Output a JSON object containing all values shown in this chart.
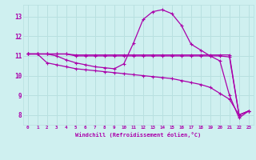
{
  "xlabel": "Windchill (Refroidissement éolien,°C)",
  "ylabel": "",
  "bg_color": "#cff0f0",
  "grid_color": "#b8e0e0",
  "line_color": "#aa00aa",
  "xlim": [
    -0.5,
    23.5
  ],
  "ylim": [
    7.5,
    13.6
  ],
  "xticks": [
    0,
    1,
    2,
    3,
    4,
    5,
    6,
    7,
    8,
    9,
    10,
    11,
    12,
    13,
    14,
    15,
    16,
    17,
    18,
    19,
    20,
    21,
    22,
    23
  ],
  "yticks": [
    8,
    9,
    10,
    11,
    12,
    13
  ],
  "line_flat1_x": [
    0,
    1,
    2,
    3,
    4,
    5,
    6,
    7,
    8,
    9,
    10,
    11,
    12,
    13,
    14,
    15,
    16,
    17,
    18,
    19,
    20,
    21,
    22,
    23
  ],
  "line_flat1_y": [
    11.1,
    11.1,
    11.1,
    11.1,
    11.1,
    11.05,
    11.05,
    11.05,
    11.05,
    11.05,
    11.05,
    11.05,
    11.05,
    11.05,
    11.05,
    11.05,
    11.05,
    11.05,
    11.05,
    11.05,
    11.05,
    11.05,
    8.0,
    8.2
  ],
  "line_flat2_x": [
    0,
    1,
    2,
    3,
    4,
    5,
    6,
    7,
    8,
    9,
    10,
    11,
    12,
    13,
    14,
    15,
    16,
    17,
    18,
    19,
    20,
    21,
    22,
    23
  ],
  "line_flat2_y": [
    11.1,
    11.1,
    11.1,
    11.1,
    11.1,
    11.0,
    11.0,
    11.0,
    11.0,
    11.0,
    11.0,
    11.0,
    11.0,
    11.0,
    11.0,
    11.0,
    11.0,
    11.0,
    11.0,
    11.0,
    11.0,
    10.95,
    8.0,
    8.2
  ],
  "line_diag_x": [
    0,
    1,
    2,
    3,
    4,
    5,
    6,
    7,
    8,
    9,
    10,
    11,
    12,
    13,
    14,
    15,
    16,
    17,
    18,
    19,
    20,
    21,
    22,
    23
  ],
  "line_diag_y": [
    11.1,
    11.1,
    10.65,
    10.55,
    10.45,
    10.35,
    10.3,
    10.25,
    10.2,
    10.15,
    10.1,
    10.05,
    10.0,
    9.95,
    9.9,
    9.85,
    9.75,
    9.65,
    9.55,
    9.4,
    9.1,
    8.8,
    8.0,
    8.2
  ],
  "line_curve_x": [
    0,
    1,
    2,
    3,
    4,
    5,
    6,
    7,
    8,
    9,
    10,
    11,
    12,
    13,
    14,
    15,
    16,
    17,
    18,
    19,
    20,
    21,
    22,
    23
  ],
  "line_curve_y": [
    11.1,
    11.1,
    11.1,
    11.0,
    10.8,
    10.65,
    10.55,
    10.45,
    10.4,
    10.35,
    10.6,
    11.65,
    12.85,
    13.25,
    13.35,
    13.15,
    12.55,
    11.6,
    11.3,
    11.0,
    10.75,
    9.0,
    7.85,
    8.2
  ],
  "marker": "+",
  "markersize": 3.5,
  "linewidth": 0.9
}
